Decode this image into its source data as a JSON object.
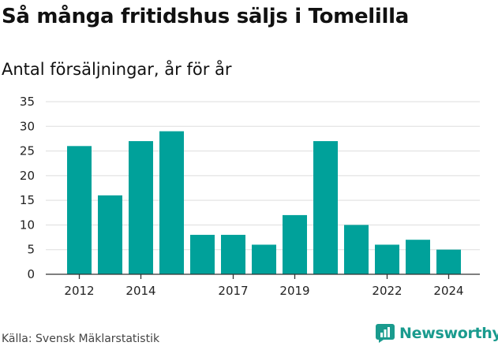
{
  "header": {
    "title": "Så många fritidshus säljs i Tomelilla",
    "subtitle": "Antal försäljningar, år för år"
  },
  "footer": {
    "source": "Källa: Svensk Mäklarstatistik",
    "brand": "Newsworthy"
  },
  "colors": {
    "bar": "#00a19a",
    "grid": "#dddddd",
    "axis": "#333333",
    "brand": "#1a9b8e"
  },
  "icons": {
    "brand_logo": "newsworthy-logo-icon"
  },
  "chart_data": {
    "type": "bar",
    "x": [
      2012,
      2013,
      2014,
      2015,
      2016,
      2017,
      2018,
      2019,
      2020,
      2021,
      2022,
      2023,
      2024
    ],
    "values": [
      26,
      16,
      27,
      29,
      8,
      8,
      6,
      12,
      27,
      10,
      6,
      7,
      5
    ],
    "x_tick_labels": [
      "2012",
      "2014",
      "2017",
      "2019",
      "2022",
      "2024"
    ],
    "y_ticks": [
      0,
      5,
      10,
      15,
      20,
      25,
      30,
      35
    ],
    "ylim": [
      0,
      35
    ],
    "grid": true,
    "legend": "none"
  }
}
